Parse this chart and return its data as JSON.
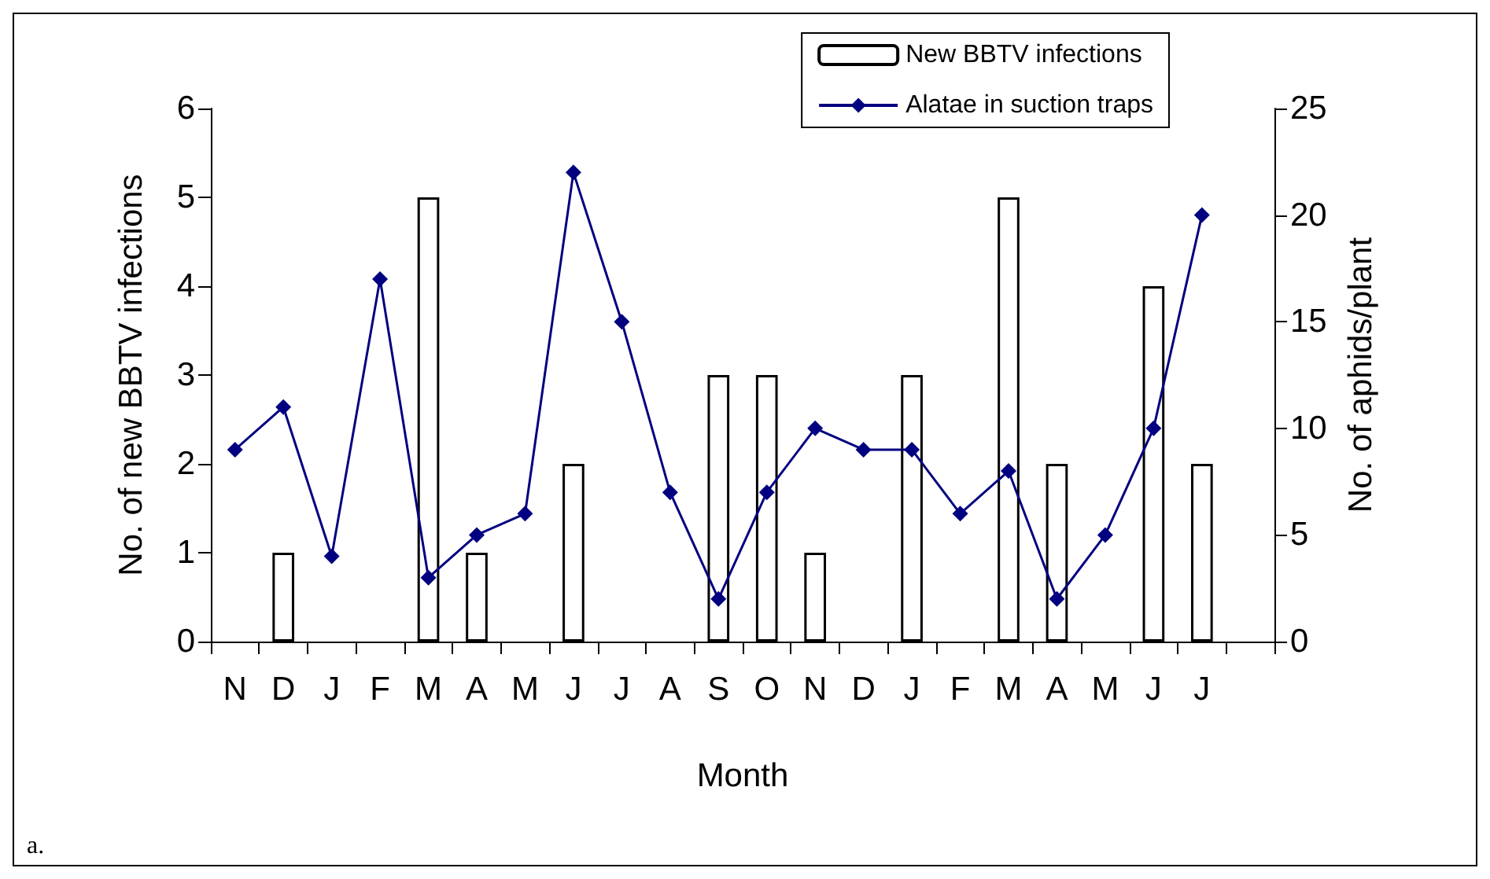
{
  "chart_data": {
    "type": "bar",
    "xlabel": "Month",
    "ylabel": "No. of new BBTV infections",
    "y2label": "No. of aphids/plant",
    "categories": [
      "N",
      "D",
      "J",
      "F",
      "M",
      "A",
      "M",
      "J",
      "J",
      "A",
      "S",
      "O",
      "N",
      "D",
      "J",
      "F",
      "M",
      "A",
      "M",
      "J",
      "J",
      null
    ],
    "series": [
      {
        "name": "New BBTV infections",
        "color": "#ffffff",
        "values": [
          0,
          1,
          0,
          0,
          5,
          1,
          0,
          2,
          0,
          0,
          3,
          3,
          1,
          0,
          3,
          0,
          5,
          2,
          0,
          4,
          2,
          null
        ]
      },
      {
        "name": "Alatae in suction traps",
        "type": "line",
        "axis": "y2",
        "color": "#000080",
        "marker": "diamond",
        "values": [
          9,
          11,
          4,
          17,
          3,
          5,
          6,
          22,
          15,
          7,
          2,
          7,
          10,
          9,
          9,
          6,
          8,
          2,
          5,
          10,
          20,
          null
        ]
      }
    ],
    "ylim": [
      0,
      6
    ],
    "yticks": [
      0,
      1,
      2,
      3,
      4,
      5,
      6
    ],
    "y2lim": [
      0,
      25
    ],
    "y2ticks": [
      0,
      5,
      10,
      15,
      20,
      25
    ],
    "grid": false,
    "legend": "top right",
    "annotations": [
      "a."
    ]
  }
}
